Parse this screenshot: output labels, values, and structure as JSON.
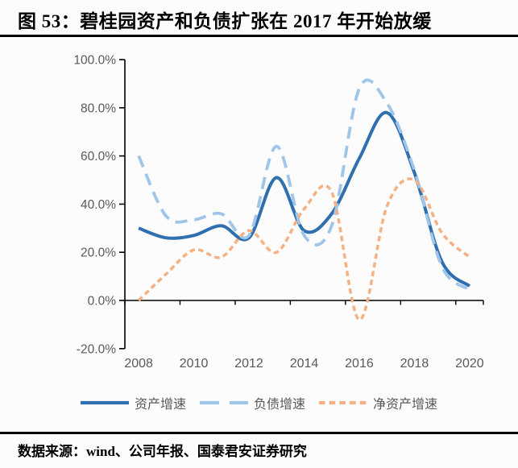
{
  "title": "图 53：碧桂园资产和负债扩张在 2017 年开始放缓",
  "source_note": "数据来源：wind、公司年报、国泰君安证券研究",
  "axis_label_color": "#595959",
  "chart_data": {
    "type": "line",
    "title": "碧桂园资产和负债扩张在 2017 年开始放缓",
    "x": [
      2008,
      2009,
      2010,
      2011,
      2012,
      2013,
      2014,
      2015,
      2016,
      2017,
      2018,
      2019,
      2020
    ],
    "x_tick_labels": [
      "2008",
      "2010",
      "2012",
      "2014",
      "2016",
      "2018",
      "2020"
    ],
    "y_tick_labels": [
      "100.0%",
      "80.0%",
      "60.0%",
      "40.0%",
      "20.0%",
      "0.0%",
      "-20.0%"
    ],
    "ylim": [
      -20,
      100
    ],
    "y_unit": "percent",
    "grid": false,
    "legend_position": "bottom",
    "series": [
      {
        "key": "asset-growth",
        "name": "资产增速",
        "style": "solid",
        "color": "#2E6FAF",
        "values": [
          30,
          26,
          27,
          31,
          26,
          51,
          29,
          36,
          59,
          78,
          53,
          16,
          6
        ]
      },
      {
        "key": "liability-growth",
        "name": "负债增速",
        "style": "long-dash",
        "color": "#9FC5E8",
        "values": [
          60,
          35,
          33.5,
          36,
          27,
          64,
          27,
          31,
          88,
          82,
          54,
          14,
          4.5
        ]
      },
      {
        "key": "net-asset-growth",
        "name": "净资产增速",
        "style": "short-dash",
        "color": "#F4B183",
        "values": [
          0,
          11,
          21,
          18,
          29,
          20,
          38,
          45,
          -8,
          39,
          50,
          28,
          18
        ]
      }
    ]
  }
}
